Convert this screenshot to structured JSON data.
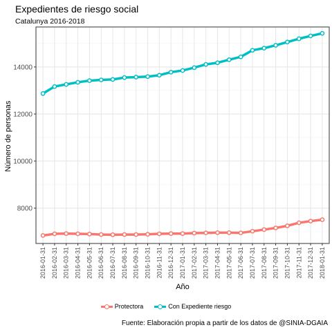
{
  "chart_data": {
    "type": "line",
    "title": "Expedientes de riesgo social",
    "subtitle": "Catalunya 2016-2018",
    "xlabel": "Año",
    "ylabel": "Número de personas",
    "caption": "Fuente: Elaboración propia a partir de los datos de @SINIA-DGAIA",
    "ylim": [
      6500,
      15700
    ],
    "yticks": [
      8000,
      10000,
      12000,
      14000
    ],
    "grid": true,
    "legend_position": "bottom",
    "x": [
      "2016-01-31",
      "2016-02-31",
      "2016-03-31",
      "2016-04-31",
      "2016-05-31",
      "2016-06-31",
      "2016-07-31",
      "2016-08-31",
      "2016-09-31",
      "2016-10-31",
      "2016-11-31",
      "2016-12-31",
      "2017-01-31",
      "2017-02-31",
      "2017-03-31",
      "2017-04-31",
      "2017-05-31",
      "2017-06-31",
      "2017-07-31",
      "2017-08-31",
      "2017-09-31",
      "2017-10-31",
      "2017-11-31",
      "2017-12-31",
      "2018-01-31"
    ],
    "series": [
      {
        "name": "Protectora",
        "color": "#f8766d",
        "values": [
          6840,
          6910,
          6920,
          6910,
          6900,
          6880,
          6870,
          6880,
          6880,
          6890,
          6910,
          6920,
          6920,
          6940,
          6950,
          6960,
          6960,
          6950,
          7020,
          7090,
          7160,
          7250,
          7380,
          7450,
          7510
        ]
      },
      {
        "name": "Con Expediente riesgo",
        "color": "#00bfc4",
        "values": [
          12870,
          13170,
          13260,
          13350,
          13420,
          13450,
          13470,
          13550,
          13570,
          13590,
          13650,
          13780,
          13850,
          13970,
          14110,
          14180,
          14310,
          14430,
          14710,
          14800,
          14920,
          15060,
          15200,
          15320,
          15430
        ]
      }
    ]
  }
}
